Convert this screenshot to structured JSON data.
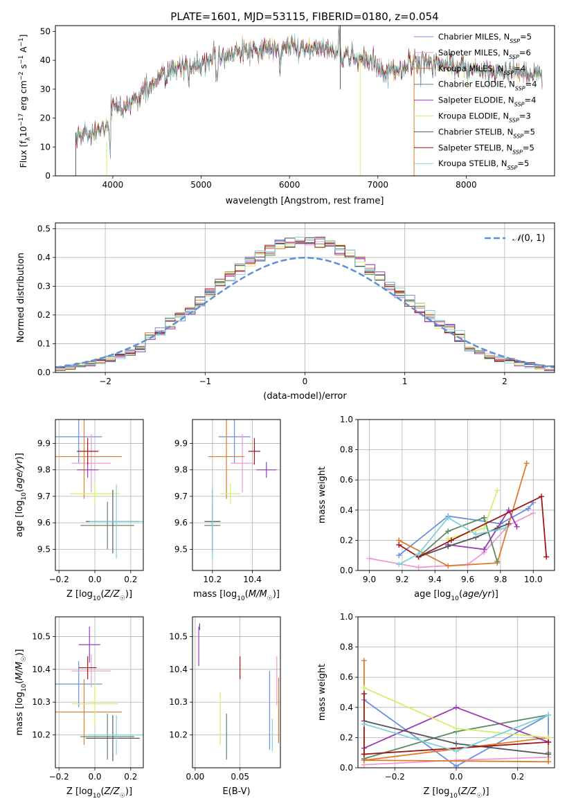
{
  "colors": [
    "#6b8fe0",
    "#ee9ad0",
    "#e07a2a",
    "#5a8a62",
    "#9b38b8",
    "#d6ee6a",
    "#555555",
    "#a01515",
    "#7fd3d8"
  ],
  "chart_data": [
    {
      "id": "spectrum",
      "type": "line",
      "title": "PLATE=1601, MJD=53115, FIBERID=0180, z=0.054",
      "xlabel": "wavelength [Angstrom, rest frame]",
      "ylabel": "Flux [f_λ10^-17 erg cm^-2 s^-1 A^-1]",
      "xlim": [
        3350,
        9000
      ],
      "ylim": [
        0,
        52
      ],
      "xticks": [
        4000,
        5000,
        6000,
        7000,
        8000
      ],
      "yticks": [
        0,
        10,
        20,
        30,
        40,
        50
      ],
      "grid": false,
      "legend_position": "right",
      "continuum": {
        "x": [
          3580,
          3700,
          3800,
          3900,
          3950,
          4000,
          4100,
          4200,
          4300,
          4400,
          4500,
          4600,
          4700,
          4800,
          4900,
          5000,
          5200,
          5400,
          5600,
          5800,
          6000,
          6200,
          6400,
          6600,
          6800,
          7000,
          7100,
          7300,
          7500,
          7700,
          7900,
          8100,
          8300,
          8500,
          8700,
          8860
        ],
        "y": [
          12,
          15,
          15,
          17,
          17,
          25,
          23,
          25,
          28,
          30,
          34,
          36,
          37,
          38,
          38,
          38,
          41,
          42,
          44,
          44,
          45,
          44,
          44,
          41,
          41,
          39,
          35,
          38,
          40,
          39,
          38,
          37,
          36,
          36,
          35,
          35
        ]
      },
      "series": [
        {
          "name": "Chabrier MILES, N_SSP=5"
        },
        {
          "name": "Salpeter MILES, N_SSP=6"
        },
        {
          "name": "Kroupa MILES, N_SSP=4"
        },
        {
          "name": "Chabrier ELODIE, N_SSP=4"
        },
        {
          "name": "Salpeter ELODIE, N_SSP=4"
        },
        {
          "name": "Kroupa ELODIE, N_SSP=3"
        },
        {
          "name": "Chabrier STELIB, N_SSP=5"
        },
        {
          "name": "Salpeter STELIB, N_SSP=5"
        },
        {
          "name": "Kroupa STELIB, N_SSP=5"
        }
      ]
    },
    {
      "id": "residuals",
      "type": "histogram",
      "xlabel": "(data-model)/error",
      "ylabel": "Normed distribution",
      "xlim": [
        -2.5,
        2.5
      ],
      "ylim": [
        0,
        0.52
      ],
      "xticks": [
        -2,
        -1,
        0,
        1,
        2
      ],
      "yticks": [
        0.0,
        0.1,
        0.2,
        0.3,
        0.4,
        0.5
      ],
      "grid": true,
      "legend_position": "upper right",
      "reference_label": "𝒩(0, 1)",
      "bin_width": 0.1
    },
    {
      "id": "age_vs_Z",
      "type": "scatter",
      "xlabel": "Z [log10(Z/Z☉)]",
      "ylabel": "age  [log10(age/yr)]",
      "xlim": [
        -0.22,
        0.27
      ],
      "ylim": [
        9.42,
        9.99
      ],
      "xticks": [
        -0.2,
        0.0,
        0.2
      ],
      "yticks": [
        9.5,
        9.6,
        9.7,
        9.8,
        9.9
      ],
      "grid": true,
      "points": [
        {
          "x": -0.09,
          "xerr": 0.13,
          "y": 9.925,
          "yerr": 0.1
        },
        {
          "x": -0.02,
          "xerr": 0.11,
          "y": 9.825,
          "yerr": 0.11
        },
        {
          "x": -0.06,
          "xerr": 0.21,
          "y": 9.85,
          "yerr": 0.16
        },
        {
          "x": 0.07,
          "xerr": 0.15,
          "y": 9.59,
          "yerr": 0.09
        },
        {
          "x": -0.04,
          "xerr": 0.06,
          "y": 9.8,
          "yerr": 0.03
        },
        {
          "x": 0.0,
          "xerr": 0.14,
          "y": 9.71,
          "yerr": 0.04
        },
        {
          "x": 0.1,
          "xerr": 0.15,
          "y": 9.605,
          "yerr": 0.12
        },
        {
          "x": -0.04,
          "xerr": 0.06,
          "y": 9.87,
          "yerr": 0.05
        },
        {
          "x": 0.12,
          "xerr": 0.15,
          "y": 9.605,
          "yerr": 0.14
        }
      ]
    },
    {
      "id": "age_vs_mass",
      "type": "scatter",
      "xlabel": "mass [log10(M/M☉)]",
      "ylabel": "",
      "xlim": [
        10.1,
        10.54
      ],
      "ylim": [
        9.42,
        9.99
      ],
      "xticks": [
        10.2,
        10.4
      ],
      "yticks": [
        9.5,
        9.6,
        9.7,
        9.8,
        9.9
      ],
      "grid": true,
      "points": [
        {
          "x": 10.31,
          "xerr": 0.08,
          "y": 9.925,
          "yerr": 0.1
        },
        {
          "x": 10.35,
          "xerr": 0.06,
          "y": 9.825,
          "yerr": 0.11
        },
        {
          "x": 10.27,
          "xerr": 0.09,
          "y": 9.85,
          "yerr": 0.16
        },
        {
          "x": 10.2,
          "xerr": 0.04,
          "y": 9.59,
          "yerr": 0.09
        },
        {
          "x": 10.47,
          "xerr": 0.05,
          "y": 9.8,
          "yerr": 0.03
        },
        {
          "x": 10.29,
          "xerr": 0.05,
          "y": 9.71,
          "yerr": 0.04
        },
        {
          "x": 10.2,
          "xerr": 0.04,
          "y": 9.605,
          "yerr": 0.12
        },
        {
          "x": 10.41,
          "xerr": 0.03,
          "y": 9.87,
          "yerr": 0.05
        },
        {
          "x": 10.2,
          "xerr": 0.01,
          "y": 9.6,
          "yerr": 0.14
        }
      ]
    },
    {
      "id": "weight_vs_age",
      "type": "line",
      "xlabel": "age  [log10(age/yr)]",
      "ylabel": "mass weight",
      "xlim": [
        8.93,
        10.13
      ],
      "ylim": [
        0,
        1
      ],
      "xticks": [
        9.0,
        9.2,
        9.4,
        9.6,
        9.8,
        10.0
      ],
      "yticks": [
        0.0,
        0.2,
        0.4,
        0.6,
        0.8,
        1.0
      ],
      "grid": true,
      "series": [
        {
          "x": [
            9.18,
            9.48,
            9.8,
            9.97,
            10.0
          ],
          "y": [
            0.1,
            0.36,
            0.31,
            0.41,
            0.45
          ]
        },
        {
          "x": [
            9.0,
            9.3,
            9.6,
            9.7,
            9.85,
            10.0
          ],
          "y": [
            0.08,
            0.02,
            0.04,
            0.12,
            0.3,
            0.38
          ]
        },
        {
          "x": [
            9.18,
            9.48,
            9.78,
            9.96
          ],
          "y": [
            0.2,
            0.03,
            0.05,
            0.71
          ]
        },
        {
          "x": [
            9.3,
            9.48,
            9.7,
            9.78
          ],
          "y": [
            0.09,
            0.26,
            0.35,
            0.06
          ]
        },
        {
          "x": [
            9.48,
            9.7,
            9.85,
            9.9
          ],
          "y": [
            0.17,
            0.14,
            0.4,
            0.29
          ]
        },
        {
          "x": [
            9.48,
            9.7,
            9.78
          ],
          "y": [
            0.21,
            0.28,
            0.53
          ]
        },
        {
          "x": [
            9.3,
            9.48,
            9.65,
            9.78,
            9.85
          ],
          "y": [
            0.09,
            0.16,
            0.22,
            0.28,
            0.31
          ]
        },
        {
          "x": [
            9.18,
            9.3,
            9.5,
            10.05,
            10.08
          ],
          "y": [
            0.17,
            0.09,
            0.2,
            0.49,
            0.09
          ]
        },
        {
          "x": [
            9.18,
            9.3,
            9.48,
            9.65,
            9.83
          ],
          "y": [
            0.04,
            0.11,
            0.35,
            0.24,
            0.28
          ]
        }
      ]
    },
    {
      "id": "mass_vs_Z",
      "type": "scatter",
      "xlabel": "Z [log10(Z/Z☉)]",
      "ylabel": "mass [log10(M/M☉)]",
      "xlim": [
        -0.22,
        0.27
      ],
      "ylim": [
        10.1,
        10.56
      ],
      "xticks": [
        -0.2,
        0.0,
        0.2
      ],
      "yticks": [
        10.2,
        10.3,
        10.4,
        10.5
      ],
      "grid": true,
      "points": [
        {
          "x": -0.09,
          "xerr": 0.13,
          "y": 10.355,
          "yerr": 0.07
        },
        {
          "x": -0.02,
          "xerr": 0.11,
          "y": 10.395,
          "yerr": 0.05
        },
        {
          "x": -0.06,
          "xerr": 0.21,
          "y": 10.27,
          "yerr": 0.1
        },
        {
          "x": 0.07,
          "xerr": 0.15,
          "y": 10.195,
          "yerr": 0.07
        },
        {
          "x": -0.03,
          "xerr": 0.06,
          "y": 10.475,
          "yerr": 0.055
        },
        {
          "x": 0.0,
          "xerr": 0.13,
          "y": 10.295,
          "yerr": 0.07
        },
        {
          "x": 0.1,
          "xerr": 0.15,
          "y": 10.19,
          "yerr": 0.07
        },
        {
          "x": -0.04,
          "xerr": 0.05,
          "y": 10.405,
          "yerr": 0.035
        },
        {
          "x": 0.12,
          "xerr": 0.15,
          "y": 10.2,
          "yerr": 0.06
        }
      ]
    },
    {
      "id": "mass_vs_ebv",
      "type": "scatter",
      "xlabel": "E(B-V)",
      "ylabel": "",
      "xlim": [
        -0.003,
        0.095
      ],
      "ylim": [
        10.1,
        10.56
      ],
      "xticks": [
        0.0,
        0.05
      ],
      "yticks": [
        10.2,
        10.3,
        10.4,
        10.5
      ],
      "grid": true,
      "points": [
        {
          "x": 0.083,
          "y": 10.275,
          "yerr": 0.12
        },
        {
          "x": 0.091,
          "y": 10.365,
          "yerr": 0.075
        },
        {
          "x": 0.093,
          "y": 10.275,
          "yerr": 0.1
        },
        {
          "x": 0.035,
          "y": 10.195,
          "yerr": 0.07
        },
        {
          "x": 0.004,
          "y": 10.47,
          "yerr": 0.06
        },
        {
          "x": 0.028,
          "y": 10.25,
          "yerr": 0.08
        },
        {
          "x": 0.005,
          "y": 10.53,
          "yerr": 0.01
        },
        {
          "x": 0.05,
          "y": 10.405,
          "yerr": 0.035
        },
        {
          "x": 0.086,
          "y": 10.2,
          "yerr": 0.05
        }
      ]
    },
    {
      "id": "weight_vs_Z",
      "type": "line",
      "xlabel": "Z [log10(Z/Z☉)]",
      "ylabel": "mass weight",
      "xlim": [
        -0.32,
        0.32
      ],
      "ylim": [
        0,
        1
      ],
      "xticks": [
        -0.2,
        0.0,
        0.2
      ],
      "yticks": [
        0.0,
        0.2,
        0.4,
        0.6,
        0.8,
        1.0
      ],
      "grid": true,
      "series": [
        {
          "x": [
            -0.3,
            0.0,
            0.3,
            0.3
          ],
          "y": [
            0.45,
            0.01,
            0.35,
            0.1
          ]
        },
        {
          "x": [
            -0.3,
            0.0,
            0.3
          ],
          "y": [
            0.02,
            0.05,
            0.07
          ]
        },
        {
          "x": [
            -0.3,
            -0.3,
            0.3,
            0.3,
            -0.3
          ],
          "y": [
            0.71,
            0.05,
            0.2,
            0.04,
            0.05
          ]
        },
        {
          "x": [
            -0.3,
            0.0,
            0.3
          ],
          "y": [
            0.06,
            0.24,
            0.35
          ]
        },
        {
          "x": [
            -0.3,
            0.0,
            0.3
          ],
          "y": [
            0.13,
            0.4,
            0.17
          ]
        },
        {
          "x": [
            -0.3,
            0.0,
            0.3
          ],
          "y": [
            0.53,
            0.26,
            0.2
          ]
        },
        {
          "x": [
            -0.3,
            0.0,
            0.3
          ],
          "y": [
            0.31,
            0.16,
            0.09
          ]
        },
        {
          "x": [
            -0.3,
            -0.3,
            0.3,
            -0.3
          ],
          "y": [
            0.49,
            0.09,
            0.17,
            0.09
          ]
        },
        {
          "x": [
            -0.3,
            0.0,
            0.3
          ],
          "y": [
            0.29,
            0.11,
            0.35
          ]
        }
      ]
    }
  ]
}
